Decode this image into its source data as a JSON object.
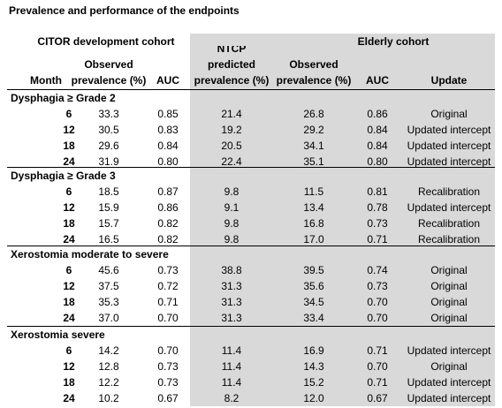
{
  "title": "Prevalence and performance of the endpoints",
  "groups": [
    "CITOR development cohort",
    "Elderly cohort"
  ],
  "columns": [
    [
      "Month"
    ],
    [
      "Observed",
      "prevalence (%)"
    ],
    [
      "AUC"
    ],
    [
      "NTCP",
      "predicted",
      "prevalence (%)"
    ],
    [
      "Observed",
      "prevalence (%)"
    ],
    [
      "AUC"
    ],
    [
      "Update"
    ]
  ],
  "sections": [
    {
      "title": "Dysphagia ≥ Grade 2",
      "rows": [
        [
          "6",
          "33.3",
          "0.85",
          "21.4",
          "26.8",
          "0.86",
          "Original"
        ],
        [
          "12",
          "30.5",
          "0.83",
          "19.2",
          "29.2",
          "0.84",
          "Updated intercept"
        ],
        [
          "18",
          "29.6",
          "0.84",
          "20.5",
          "34.1",
          "0.84",
          "Updated intercept"
        ],
        [
          "24",
          "31.9",
          "0.80",
          "22.4",
          "35.1",
          "0.80",
          "Updated intercept"
        ]
      ]
    },
    {
      "title": "Dysphagia ≥ Grade 3",
      "rows": [
        [
          "6",
          "18.5",
          "0.87",
          "9.8",
          "11.5",
          "0.81",
          "Recalibration"
        ],
        [
          "12",
          "15.9",
          "0.86",
          "9.1",
          "13.4",
          "0.78",
          "Updated intercept"
        ],
        [
          "18",
          "15.7",
          "0.82",
          "9.8",
          "16.8",
          "0.73",
          "Recalibration"
        ],
        [
          "24",
          "16.5",
          "0.82",
          "9.8",
          "17.0",
          "0.71",
          "Recalibration"
        ]
      ]
    },
    {
      "title": "Xerostomia moderate to severe",
      "rows": [
        [
          "6",
          "45.6",
          "0.73",
          "38.8",
          "39.5",
          "0.74",
          "Original"
        ],
        [
          "12",
          "37.5",
          "0.72",
          "31.3",
          "35.6",
          "0.73",
          "Original"
        ],
        [
          "18",
          "35.3",
          "0.71",
          "31.3",
          "34.5",
          "0.70",
          "Original"
        ],
        [
          "24",
          "37.0",
          "0.70",
          "31.3",
          "33.4",
          "0.70",
          "Original"
        ]
      ]
    },
    {
      "title": "Xerostomia severe",
      "rows": [
        [
          "6",
          "14.2",
          "0.70",
          "11.4",
          "16.9",
          "0.71",
          "Updated intercept"
        ],
        [
          "12",
          "12.8",
          "0.73",
          "11.4",
          "14.3",
          "0.70",
          "Original"
        ],
        [
          "18",
          "12.2",
          "0.73",
          "11.4",
          "15.2",
          "0.71",
          "Updated intercept"
        ],
        [
          "24",
          "10.2",
          "0.67",
          "8.2",
          "12.0",
          "0.67",
          "Updated intercept"
        ]
      ]
    }
  ]
}
